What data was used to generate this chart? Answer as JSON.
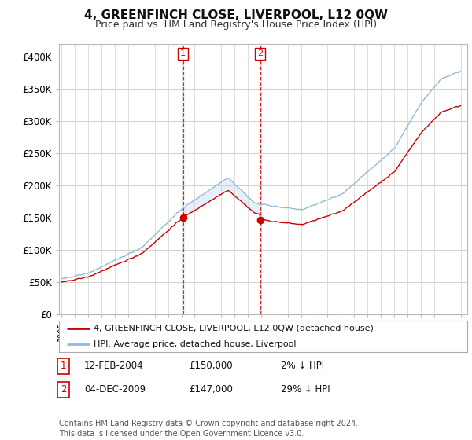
{
  "title": "4, GREENFINCH CLOSE, LIVERPOOL, L12 0QW",
  "subtitle": "Price paid vs. HM Land Registry's House Price Index (HPI)",
  "ylim": [
    0,
    420000
  ],
  "yticks": [
    0,
    50000,
    100000,
    150000,
    200000,
    250000,
    300000,
    350000,
    400000
  ],
  "sale1_price": 150000,
  "sale1_x": 2004.12,
  "sale2_price": 147000,
  "sale2_x": 2009.92,
  "hpi_color": "#93b8d8",
  "price_color": "#cc0000",
  "shade_color": "#daeaf8",
  "legend_label_price": "4, GREENFINCH CLOSE, LIVERPOOL, L12 0QW (detached house)",
  "legend_label_hpi": "HPI: Average price, detached house, Liverpool",
  "footer": "Contains HM Land Registry data © Crown copyright and database right 2024.\nThis data is licensed under the Open Government Licence v3.0.",
  "background_color": "#ffffff"
}
